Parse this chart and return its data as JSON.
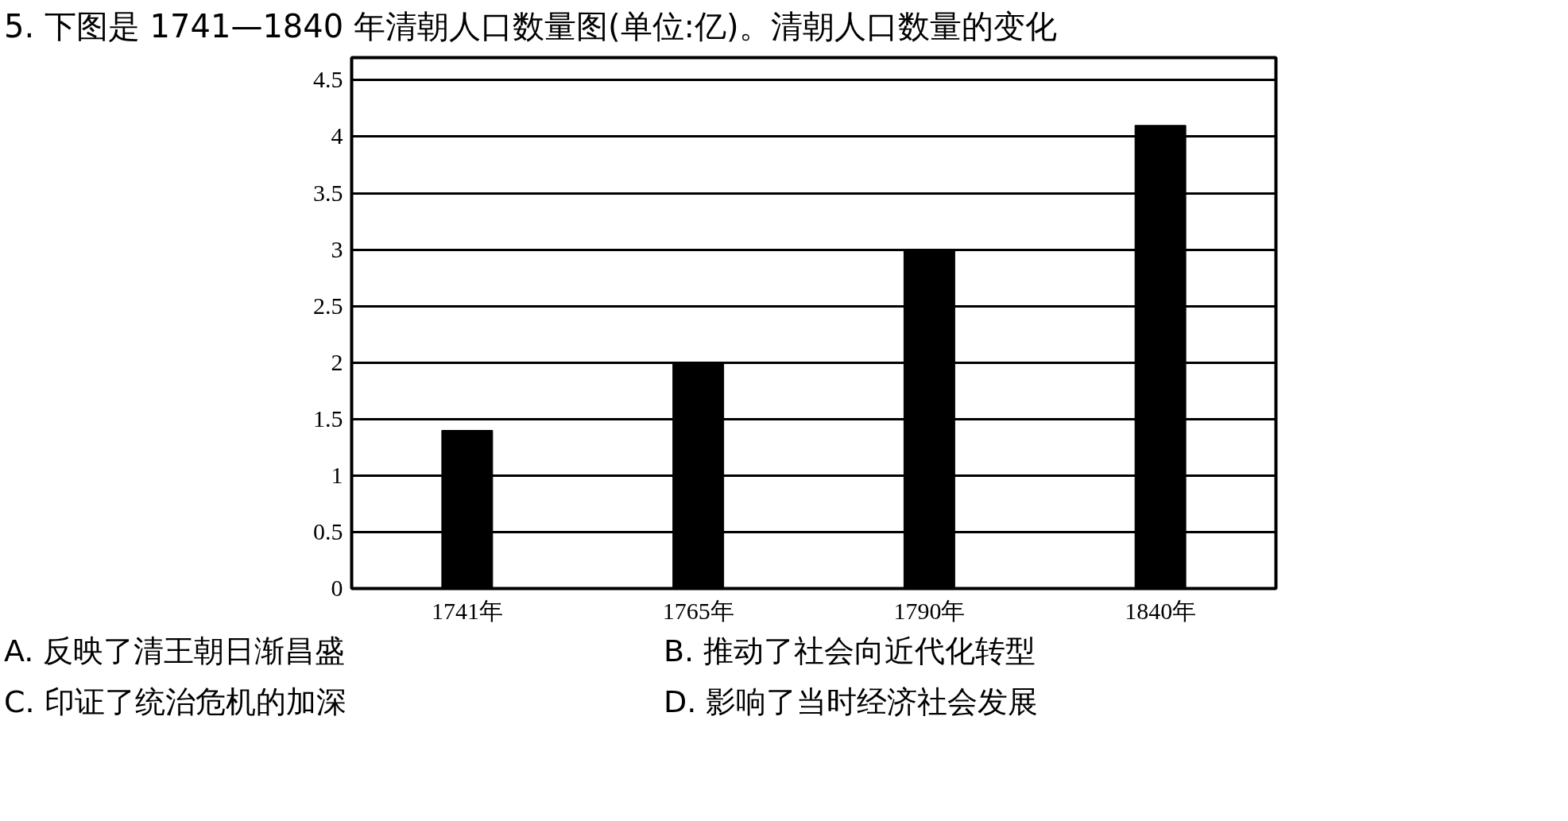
{
  "chart_data": {
    "type": "bar",
    "title": "5. 下图是 1741—1840 年清朝人口数量图(单位:亿)。清朝人口数量的变化",
    "categories": [
      "1741年",
      "1765年",
      "1790年",
      "1840年"
    ],
    "values": [
      1.4,
      2.0,
      3.0,
      4.1
    ],
    "color": "#000000",
    "ylim": [
      0,
      4.7
    ],
    "yticks": [
      0,
      0.5,
      1,
      1.5,
      2,
      2.5,
      3,
      3.5,
      4,
      4.5
    ],
    "grid": "y",
    "annotations": [
      "A. 反映了清王朝日渐昌盛",
      "B. 推动了社会向近代化转型",
      "C. 印证了统治危机的加深",
      "D. 影响了当时经济社会发展"
    ]
  }
}
